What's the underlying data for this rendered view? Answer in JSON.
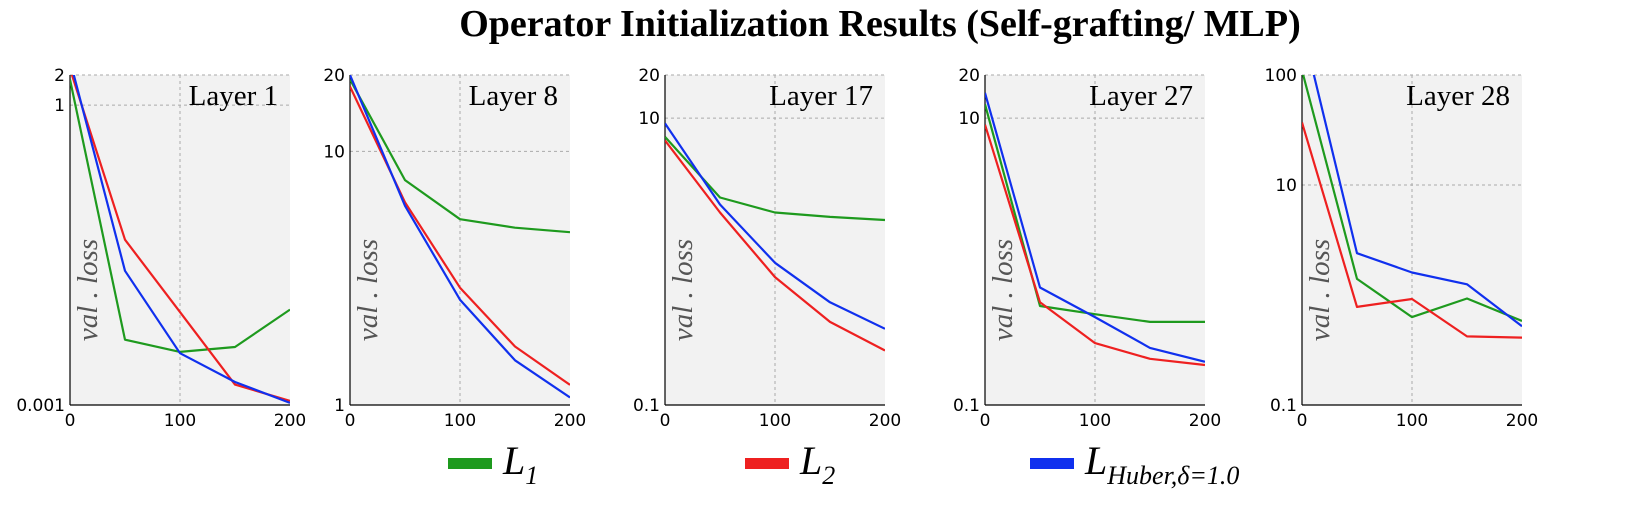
{
  "chart_data": {
    "title": "Operator Initialization Results (Self-grafting/ MLP)",
    "type": "line",
    "ylabel": "val . loss",
    "legend": [
      {
        "name": "L",
        "sub": "1",
        "color": "#1e9a1e"
      },
      {
        "name": "L",
        "sub": "2",
        "color": "#ee2020"
      },
      {
        "name": "L",
        "sub": "Huber,δ=1.0",
        "color": "#1030ee"
      }
    ],
    "panels": [
      {
        "label": "Layer 1",
        "x": [
          0,
          50,
          100,
          150,
          200
        ],
        "xticks": [
          "0",
          "100",
          "200"
        ],
        "xlim": [
          0,
          200
        ],
        "yscale": "log",
        "ylim": [
          0.001,
          2
        ],
        "yticks": [
          {
            "v": 0.001,
            "t": "0.001"
          },
          {
            "v": 1,
            "t": "1"
          },
          {
            "v": 2,
            "t": "2"
          }
        ],
        "series": [
          {
            "name": "L1",
            "values": [
              1.8,
              0.0045,
              0.0034,
              0.0038,
              0.009
            ]
          },
          {
            "name": "L2",
            "values": [
              2.3,
              0.045,
              0.0085,
              0.0016,
              0.0011
            ]
          },
          {
            "name": "Huber",
            "values": [
              2.8,
              0.022,
              0.0033,
              0.0017,
              0.00105
            ]
          }
        ]
      },
      {
        "label": "Layer 8",
        "x": [
          0,
          50,
          100,
          150,
          200
        ],
        "xticks": [
          "0",
          "100",
          "200"
        ],
        "xlim": [
          0,
          200
        ],
        "yscale": "log",
        "ylim": [
          1,
          20
        ],
        "yticks": [
          {
            "v": 1,
            "t": "1"
          },
          {
            "v": 10,
            "t": "10"
          },
          {
            "v": 20,
            "t": "20"
          }
        ],
        "series": [
          {
            "name": "L1",
            "values": [
              19.2,
              7.7,
              5.4,
              5.0,
              4.8
            ]
          },
          {
            "name": "L2",
            "values": [
              18.0,
              6.3,
              2.9,
              1.7,
              1.2
            ]
          },
          {
            "name": "Huber",
            "values": [
              20.0,
              6.1,
              2.6,
              1.5,
              1.07
            ]
          }
        ]
      },
      {
        "label": "Layer 17",
        "x": [
          0,
          50,
          100,
          150,
          200
        ],
        "xticks": [
          "0",
          "100",
          "200"
        ],
        "xlim": [
          0,
          200
        ],
        "yscale": "log",
        "ylim": [
          0.1,
          20
        ],
        "yticks": [
          {
            "v": 0.1,
            "t": "0.1"
          },
          {
            "v": 10,
            "t": "10"
          },
          {
            "v": 20,
            "t": "20"
          }
        ],
        "series": [
          {
            "name": "L1",
            "values": [
              7.4,
              2.8,
              2.2,
              2.05,
              1.95
            ]
          },
          {
            "name": "L2",
            "values": [
              7.0,
              2.2,
              0.78,
              0.38,
              0.24
            ]
          },
          {
            "name": "Huber",
            "values": [
              9.2,
              2.5,
              0.98,
              0.52,
              0.34
            ]
          }
        ]
      },
      {
        "label": "Layer 27",
        "x": [
          0,
          50,
          100,
          150,
          200
        ],
        "xticks": [
          "0",
          "100",
          "200"
        ],
        "xlim": [
          0,
          200
        ],
        "yscale": "log",
        "ylim": [
          0.1,
          20
        ],
        "yticks": [
          {
            "v": 0.1,
            "t": "0.1"
          },
          {
            "v": 10,
            "t": "10"
          },
          {
            "v": 20,
            "t": "20"
          }
        ],
        "series": [
          {
            "name": "L1",
            "values": [
              12.5,
              0.49,
              0.43,
              0.38,
              0.38
            ]
          },
          {
            "name": "L2",
            "values": [
              9.0,
              0.52,
              0.27,
              0.21,
              0.19
            ]
          },
          {
            "name": "Huber",
            "values": [
              15.0,
              0.66,
              0.41,
              0.25,
              0.2
            ]
          }
        ]
      },
      {
        "label": "Layer 28",
        "x": [
          0,
          50,
          100,
          150,
          200
        ],
        "xticks": [
          "0",
          "100",
          "200"
        ],
        "xlim": [
          0,
          200
        ],
        "yscale": "log",
        "ylim": [
          0.1,
          100
        ],
        "yticks": [
          {
            "v": 0.1,
            "t": "0.1"
          },
          {
            "v": 10,
            "t": "10"
          },
          {
            "v": 100,
            "t": "100"
          }
        ],
        "series": [
          {
            "name": "L1",
            "values": [
              110,
              1.4,
              0.63,
              0.93,
              0.58
            ]
          },
          {
            "name": "L2",
            "values": [
              37,
              0.78,
              0.92,
              0.42,
              0.41
            ]
          },
          {
            "name": "Huber",
            "values": [
              280,
              2.4,
              1.6,
              1.25,
              0.52
            ]
          }
        ]
      }
    ]
  }
}
